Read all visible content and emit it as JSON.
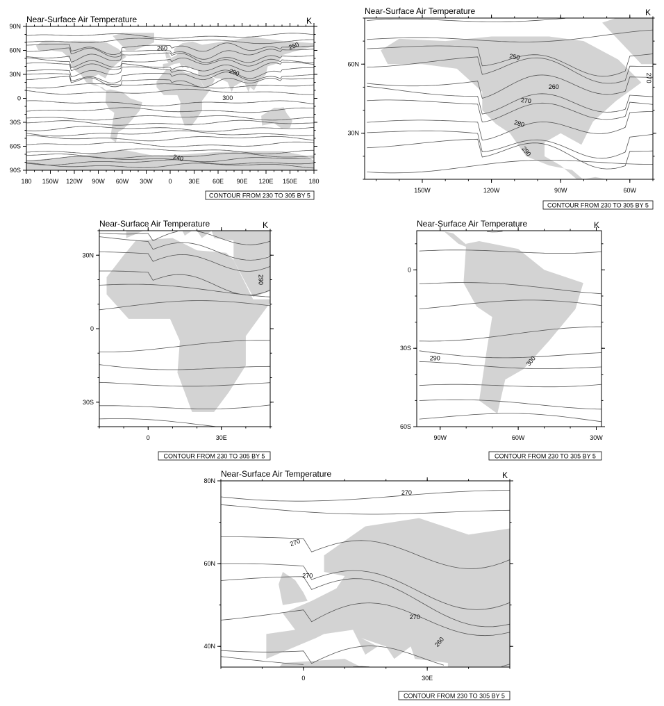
{
  "colors": {
    "land": "#d3d3d3",
    "contour": "#555555",
    "frame": "#000000",
    "background": "#ffffff"
  },
  "panels": [
    {
      "id": "global",
      "title": "Near-Surface Air Temperature",
      "units": "K",
      "lon_range": [
        -180,
        180
      ],
      "lat_range": [
        -90,
        90
      ],
      "x_ticks": [
        {
          "value": -180,
          "label": "180"
        },
        {
          "value": -150,
          "label": "150W"
        },
        {
          "value": -120,
          "label": "120W"
        },
        {
          "value": -90,
          "label": "90W"
        },
        {
          "value": -60,
          "label": "60W"
        },
        {
          "value": -30,
          "label": "30W"
        },
        {
          "value": 0,
          "label": "0"
        },
        {
          "value": 30,
          "label": "30E"
        },
        {
          "value": 60,
          "label": "60E"
        },
        {
          "value": 90,
          "label": "90E"
        },
        {
          "value": 120,
          "label": "120E"
        },
        {
          "value": 150,
          "label": "150E"
        },
        {
          "value": 180,
          "label": "180"
        }
      ],
      "y_ticks": [
        {
          "value": 90,
          "label": "90N"
        },
        {
          "value": 60,
          "label": "60N"
        },
        {
          "value": 30,
          "label": "30N"
        },
        {
          "value": 0,
          "label": "0"
        },
        {
          "value": -30,
          "label": "30S"
        },
        {
          "value": -60,
          "label": "60S"
        },
        {
          "value": -90,
          "label": "90S"
        }
      ],
      "contour_labels": [
        "260",
        "250",
        "290",
        "300",
        "240"
      ],
      "contour_info": "CONTOUR FROM 230 TO 305 BY 5"
    },
    {
      "id": "north-america",
      "title": "Near-Surface Air Temperature",
      "units": "K",
      "lon_range": [
        -175,
        -50
      ],
      "lat_range": [
        10,
        80
      ],
      "x_ticks": [
        {
          "value": -150,
          "label": "150W"
        },
        {
          "value": -120,
          "label": "120W"
        },
        {
          "value": -90,
          "label": "90W"
        },
        {
          "value": -60,
          "label": "60W"
        }
      ],
      "y_ticks": [
        {
          "value": 60,
          "label": "60N"
        },
        {
          "value": 30,
          "label": "30N"
        }
      ],
      "contour_labels": [
        "250",
        "260",
        "270",
        "280",
        "290",
        "270"
      ],
      "contour_info": "CONTOUR FROM 230 TO 305 BY 5"
    },
    {
      "id": "africa",
      "title": "Near-Surface Air Temperature",
      "units": "K",
      "lon_range": [
        -20,
        50
      ],
      "lat_range": [
        -40,
        40
      ],
      "x_ticks": [
        {
          "value": 0,
          "label": "0"
        },
        {
          "value": 30,
          "label": "30E"
        }
      ],
      "y_ticks": [
        {
          "value": 30,
          "label": "30N"
        },
        {
          "value": 0,
          "label": "0"
        },
        {
          "value": -30,
          "label": "30S"
        }
      ],
      "contour_labels": [
        "290"
      ],
      "contour_info": "CONTOUR FROM 230 TO 305 BY 5"
    },
    {
      "id": "south-america",
      "title": "Near-Surface Air Temperature",
      "units": "K",
      "lon_range": [
        -99,
        -28
      ],
      "lat_range": [
        -60,
        15
      ],
      "x_ticks": [
        {
          "value": -90,
          "label": "90W"
        },
        {
          "value": -60,
          "label": "60W"
        },
        {
          "value": -30,
          "label": "30W"
        }
      ],
      "y_ticks": [
        {
          "value": 0,
          "label": "0"
        },
        {
          "value": -30,
          "label": "30S"
        },
        {
          "value": -60,
          "label": "60S"
        }
      ],
      "contour_labels": [
        "290",
        "300"
      ],
      "contour_info": "CONTOUR FROM 230 TO 305 BY 5"
    },
    {
      "id": "europe",
      "title": "Near-Surface Air Temperature",
      "units": "K",
      "lon_range": [
        -20,
        50
      ],
      "lat_range": [
        35,
        80
      ],
      "x_ticks": [
        {
          "value": 0,
          "label": "0"
        },
        {
          "value": 30,
          "label": "30E"
        }
      ],
      "y_ticks": [
        {
          "value": 80,
          "label": "80N"
        },
        {
          "value": 60,
          "label": "60N"
        },
        {
          "value": 40,
          "label": "40N"
        }
      ],
      "contour_labels": [
        "270",
        "270",
        "270",
        "270",
        "260"
      ],
      "contour_info": "CONTOUR FROM 230 TO 305 BY 5"
    }
  ]
}
